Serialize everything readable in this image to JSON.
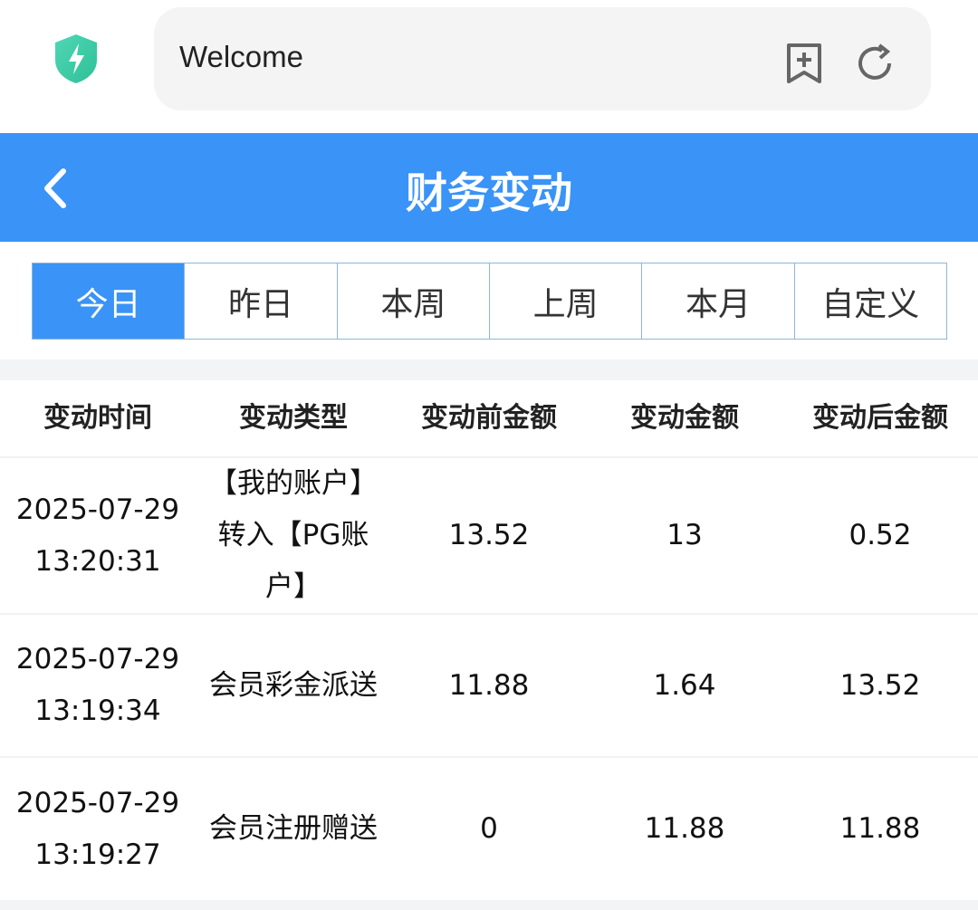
{
  "browser": {
    "url_text": "Welcome",
    "shield_color": "#3ecfa6"
  },
  "header": {
    "title": "财务变动",
    "bg_color": "#3a93f7"
  },
  "tabs": [
    {
      "label": "今日",
      "active": true
    },
    {
      "label": "昨日"
    },
    {
      "label": "本周"
    },
    {
      "label": "上周"
    },
    {
      "label": "本月"
    },
    {
      "label": "自定义"
    }
  ],
  "table": {
    "headers": [
      "变动时间",
      "变动类型",
      "变动前金额",
      "变动金额",
      "变动后金额"
    ],
    "rows": [
      {
        "date": "2025-07-29",
        "time": "13:20:31",
        "type": "【我的账户】转入【PG账户】",
        "before": "13.52",
        "amount": "13",
        "after": "0.52"
      },
      {
        "date": "2025-07-29",
        "time": "13:19:34",
        "type": "会员彩金派送",
        "before": "11.88",
        "amount": "1.64",
        "after": "13.52"
      },
      {
        "date": "2025-07-29",
        "time": "13:19:27",
        "type": "会员注册赠送",
        "before": "0",
        "amount": "11.88",
        "after": "11.88"
      }
    ]
  }
}
